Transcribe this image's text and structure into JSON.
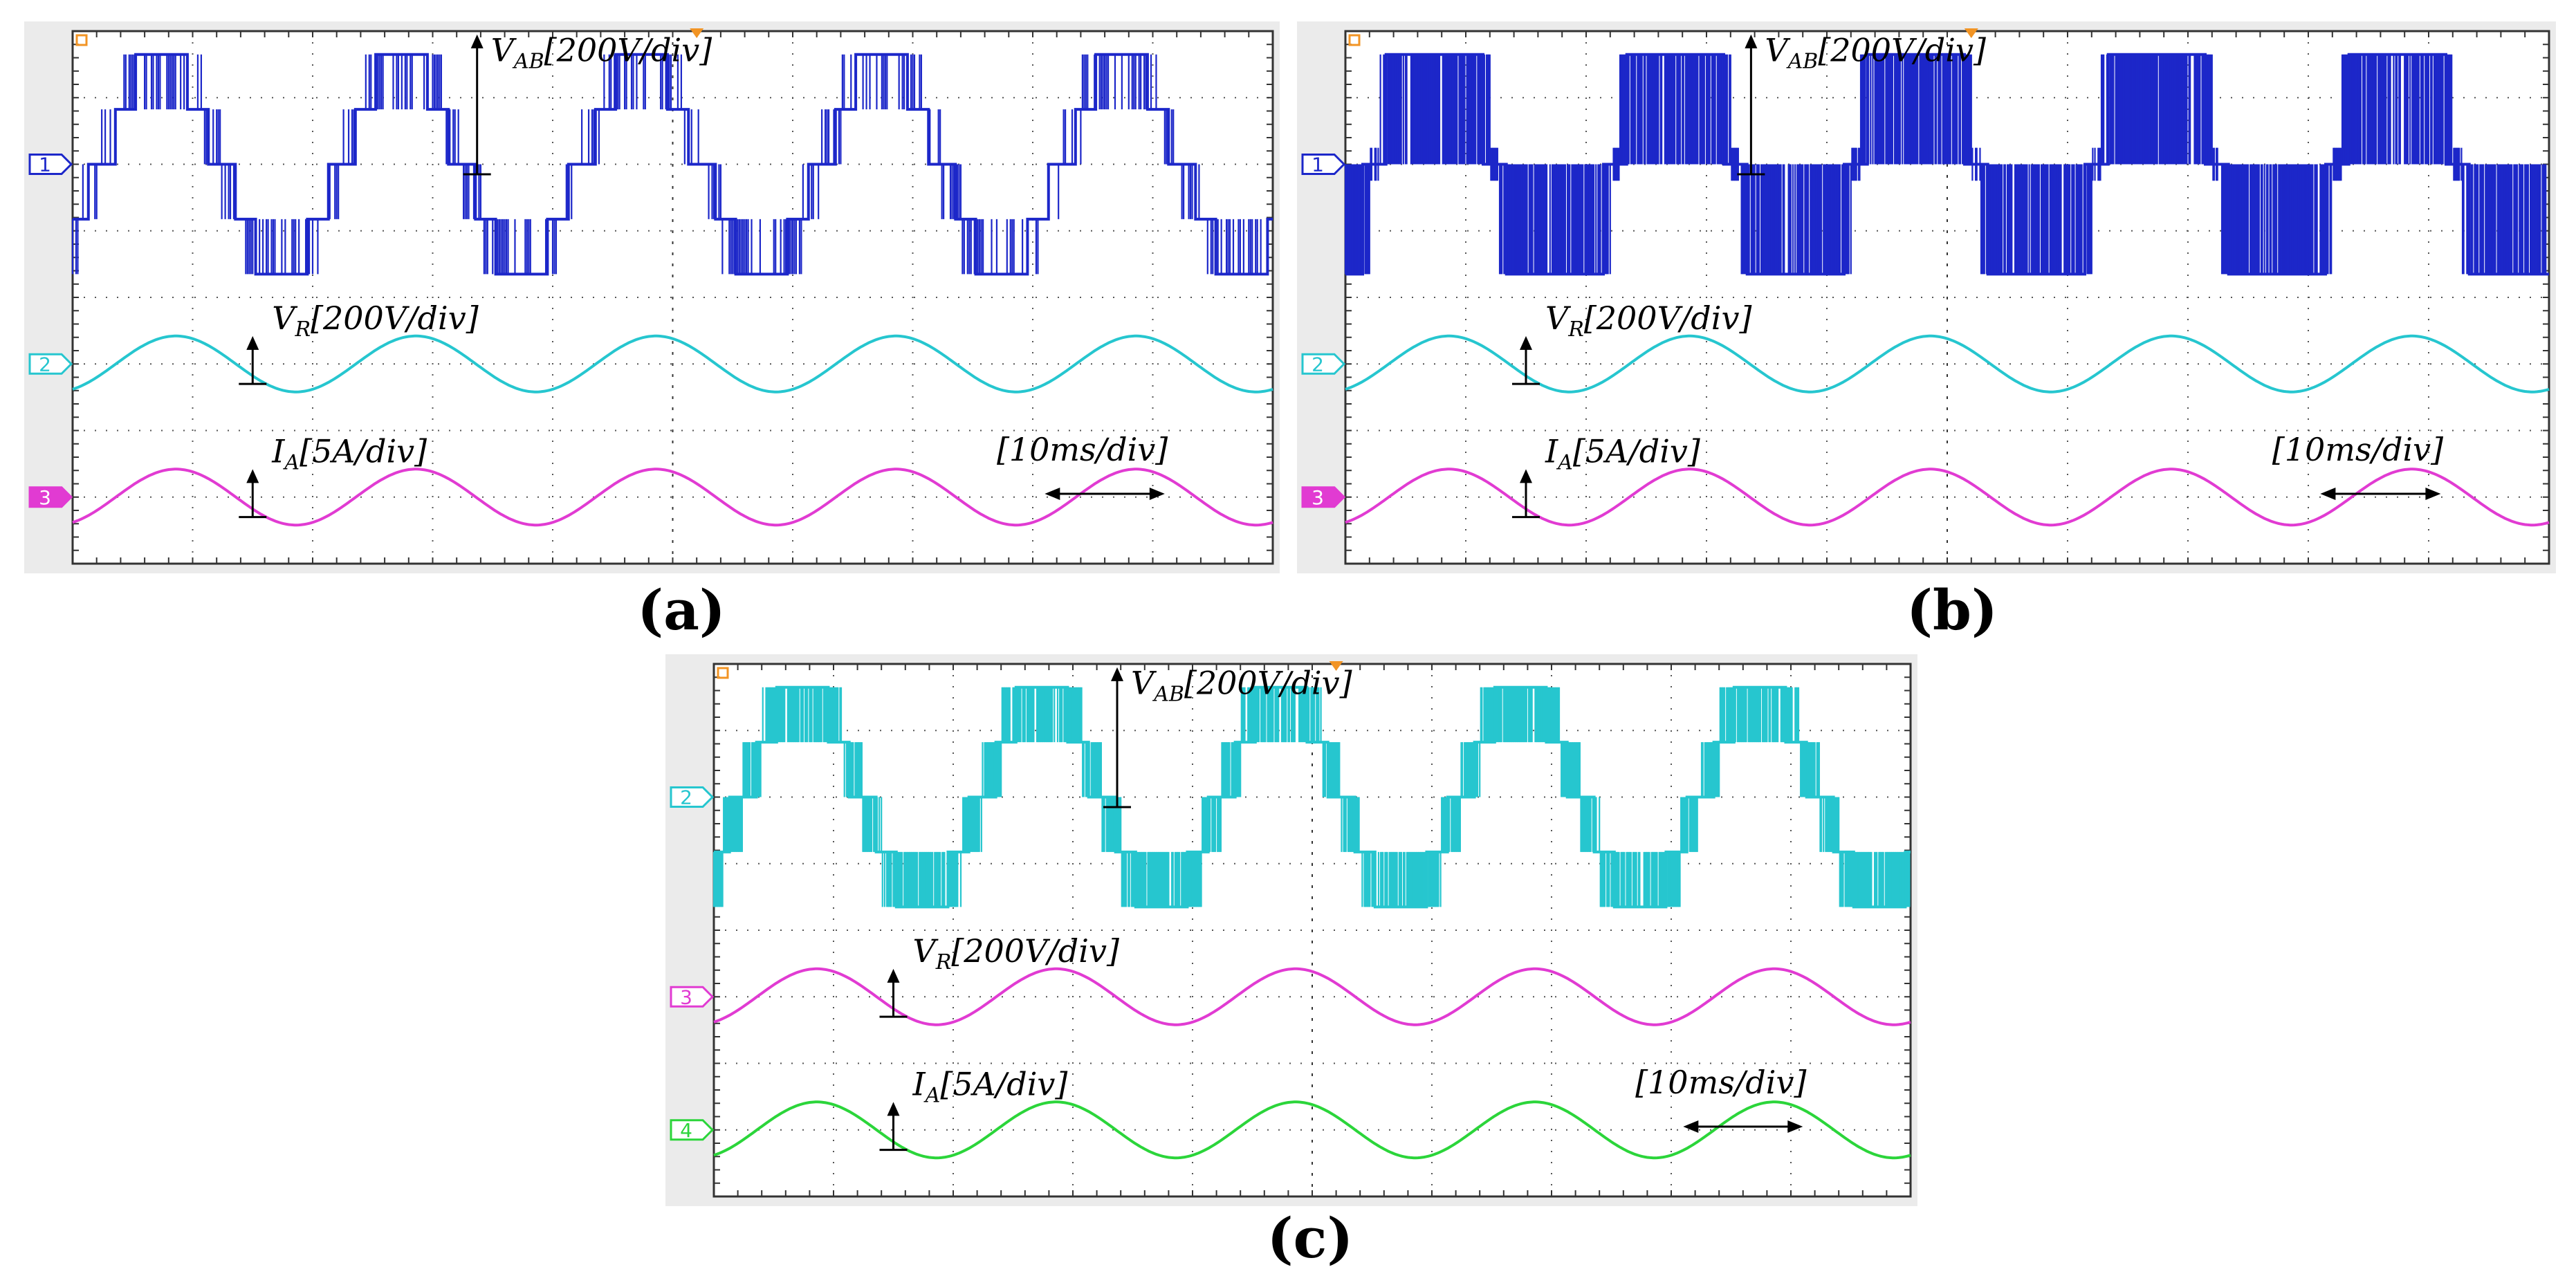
{
  "figure": {
    "panels": [
      {
        "id": "a",
        "caption": "(a)",
        "channels": [
          {
            "num": "1",
            "color": "#1c27c9",
            "kind": "multilevel",
            "levels": 5
          },
          {
            "num": "2",
            "color": "#26c6cf",
            "kind": "sine"
          },
          {
            "num": "3",
            "color": "#e13bd2",
            "kind": "sine"
          }
        ],
        "labels": {
          "vab": "V_AB [200V/div]",
          "vr": "V_R [200V/div]",
          "ia": "I_A [5A/div]",
          "time": "[10ms/div]"
        }
      },
      {
        "id": "b",
        "caption": "(b)",
        "channels": [
          {
            "num": "1",
            "color": "#1c27c9",
            "kind": "multilevel",
            "levels": 3
          },
          {
            "num": "2",
            "color": "#26c6cf",
            "kind": "sine"
          },
          {
            "num": "3",
            "color": "#e13bd2",
            "kind": "sine"
          }
        ],
        "labels": {
          "vab": "V_AB [200V/div]",
          "vr": "V_R [200V/div]",
          "ia": "I_A [5A/div]",
          "time": "[10ms/div]"
        }
      },
      {
        "id": "c",
        "caption": "(c)",
        "channels": [
          {
            "num": "2",
            "color": "#26c6cf",
            "kind": "multilevel",
            "levels": 5
          },
          {
            "num": "3",
            "color": "#e13bd2",
            "kind": "sine"
          },
          {
            "num": "4",
            "color": "#2bd53a",
            "kind": "sine"
          }
        ],
        "labels": {
          "vab": "V_AB [200V/div]",
          "vr": "V_R [200V/div]",
          "ia": "I_A [5A/div]",
          "time": "[10ms/div]"
        }
      }
    ]
  },
  "chart_data": [
    {
      "type": "line",
      "title": "(a)",
      "xlabel": "[10ms/div]",
      "x_range_ms": [
        0,
        100
      ],
      "period_ms": 20,
      "series": [
        {
          "name": "V_AB [200V/div]",
          "waveform": "5-level staircase",
          "amplitude_div": 1.75
        },
        {
          "name": "V_R [200V/div]",
          "waveform": "sine",
          "amplitude_div": 0.4
        },
        {
          "name": "I_A [5A/div]",
          "waveform": "sine",
          "amplitude_div": 0.4
        }
      ]
    },
    {
      "type": "line",
      "title": "(b)",
      "xlabel": "[10ms/div]",
      "x_range_ms": [
        0,
        100
      ],
      "period_ms": 20,
      "series": [
        {
          "name": "V_AB [200V/div]",
          "waveform": "3-level PWM",
          "amplitude_div": 1.75
        },
        {
          "name": "V_R [200V/div]",
          "waveform": "sine",
          "amplitude_div": 0.4
        },
        {
          "name": "I_A [5A/div]",
          "waveform": "sine",
          "amplitude_div": 0.4
        }
      ]
    },
    {
      "type": "line",
      "title": "(c)",
      "xlabel": "[10ms/div]",
      "x_range_ms": [
        0,
        100
      ],
      "period_ms": 20,
      "series": [
        {
          "name": "V_AB [200V/div]",
          "waveform": "5-level PWM",
          "amplitude_div": 1.7
        },
        {
          "name": "V_R [200V/div]",
          "waveform": "sine",
          "amplitude_div": 0.4
        },
        {
          "name": "I_A [5A/div]",
          "waveform": "sine",
          "amplitude_div": 0.4
        }
      ]
    }
  ]
}
